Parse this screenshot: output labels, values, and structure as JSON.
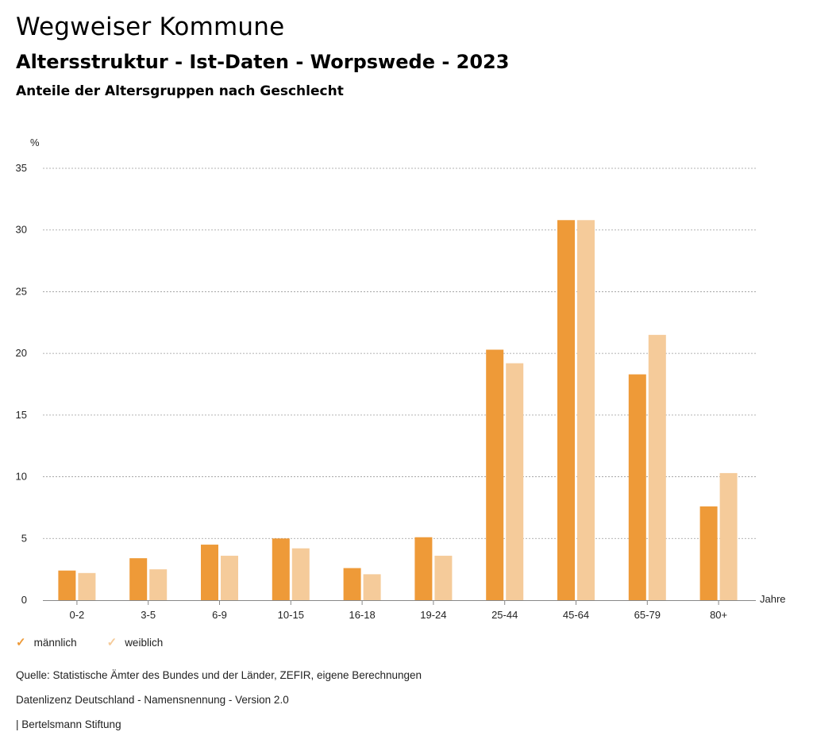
{
  "header": {
    "title": "Wegweiser Kommune",
    "subtitle": "Altersstruktur - Ist-Daten - Worpswede - 2023",
    "subsubtitle": "Anteile der Altersgruppen nach Geschlecht"
  },
  "colors": {
    "male": "#EE9A38",
    "female": "#F5CB9A",
    "grid": "#9a9a9a"
  },
  "chart_data": {
    "type": "bar",
    "title": "Anteile der Altersgruppen nach Geschlecht",
    "ylabel": "%",
    "xlabel": "Jahre",
    "ylim": [
      0,
      35
    ],
    "yticks": [
      0,
      5,
      10,
      15,
      20,
      25,
      30,
      35
    ],
    "grid": true,
    "categories": [
      "0-2",
      "3-5",
      "6-9",
      "10-15",
      "16-18",
      "19-24",
      "25-44",
      "45-64",
      "65-79",
      "80+"
    ],
    "series": [
      {
        "name": "männlich",
        "values": [
          2.4,
          3.4,
          4.5,
          5.0,
          2.6,
          5.1,
          20.3,
          30.8,
          18.3,
          7.6
        ]
      },
      {
        "name": "weiblich",
        "values": [
          2.2,
          2.5,
          3.6,
          4.2,
          2.1,
          3.6,
          19.2,
          30.8,
          21.5,
          10.3
        ]
      }
    ],
    "legend": "bottom-left"
  },
  "footer": {
    "source": "Quelle: Statistische Ämter des Bundes und der Länder, ZEFIR, eigene Berechnungen",
    "license": "Datenlizenz Deutschland - Namensnennung - Version 2.0",
    "publisher": "| Bertelsmann Stiftung"
  }
}
